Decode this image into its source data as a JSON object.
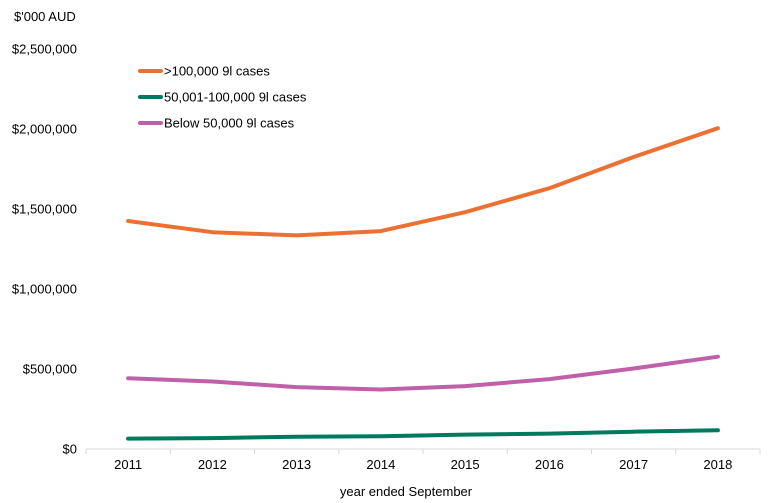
{
  "chart_data": {
    "type": "line",
    "title": "",
    "unit_label": "$'000 AUD",
    "xlabel": "year ended September",
    "ylabel": "",
    "categories": [
      "2011",
      "2012",
      "2013",
      "2014",
      "2015",
      "2016",
      "2017",
      "2018"
    ],
    "ylim": [
      0,
      2500000
    ],
    "yticks": [
      0,
      500000,
      1000000,
      1500000,
      2000000,
      2500000
    ],
    "ytick_labels": [
      "$0",
      "$500,000",
      "$1,000,000",
      "$1,500,000",
      "$2,000,000",
      "$2,500,000"
    ],
    "grid": false,
    "legend_position": "top-left",
    "series": [
      {
        "name": ">100,000 9l cases",
        "color": "#ED7033",
        "values": [
          1425000,
          1355000,
          1335000,
          1362000,
          1480000,
          1630000,
          1825000,
          2005000
        ]
      },
      {
        "name": "50,001-100,000 9l cases",
        "color": "#007A5E",
        "values": [
          65000,
          68000,
          77000,
          80000,
          90000,
          96000,
          108000,
          117000
        ]
      },
      {
        "name": "Below 50,000 9l cases",
        "color": "#C060A8",
        "values": [
          442000,
          422000,
          387000,
          372000,
          393000,
          437000,
          503000,
          577000
        ]
      }
    ]
  }
}
